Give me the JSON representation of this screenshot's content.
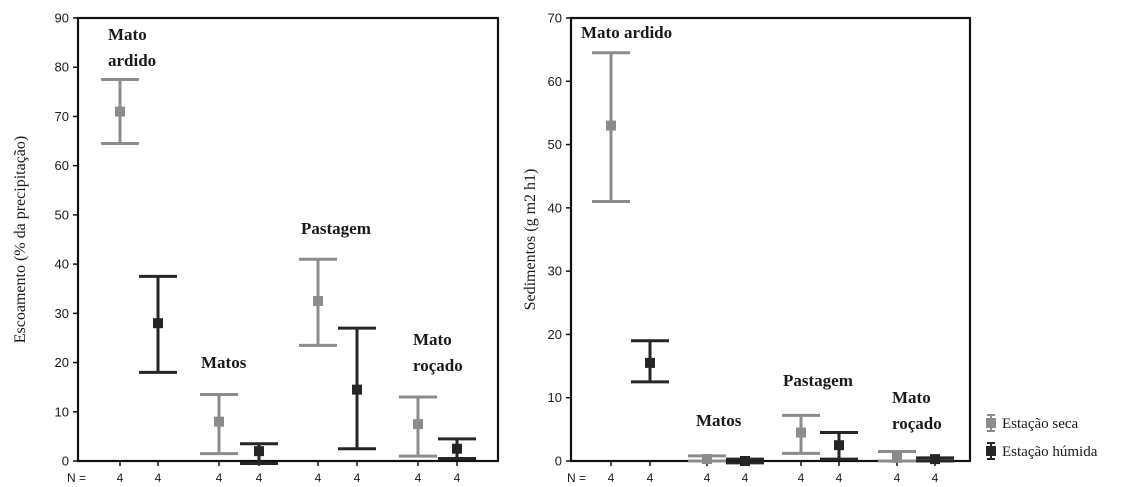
{
  "legend": [
    {
      "label": "Estação seca",
      "color": "#8c8c8c"
    },
    {
      "label": "Estação húmida",
      "color": "#262626"
    }
  ],
  "n_prefix": "N =",
  "chart_data": [
    {
      "type": "error_bar",
      "ylabel": "Escoamento (% da precipitação)",
      "ylim": [
        0,
        90
      ],
      "yticks": [
        0,
        10,
        20,
        30,
        40,
        50,
        60,
        70,
        80,
        90
      ],
      "n_values": [
        "4",
        "4",
        "4",
        "4",
        "4",
        "4",
        "4",
        "4"
      ],
      "annotations": [
        {
          "lines": [
            "Mato",
            "ardido"
          ],
          "group": 0
        },
        {
          "lines": [
            "Matos"
          ],
          "group": 1
        },
        {
          "lines": [
            "Pastagem"
          ],
          "group": 2
        },
        {
          "lines": [
            "Mato",
            "roçado"
          ],
          "group": 3
        }
      ],
      "groups": [
        "Mato ardido",
        "Matos",
        "Pastagem",
        "Mato roçado"
      ],
      "series": [
        {
          "name": "Estação seca",
          "color": "#8c8c8c",
          "mean": [
            71,
            8,
            32.5,
            7.5
          ],
          "lower": [
            64.5,
            1.5,
            23.5,
            1
          ],
          "upper": [
            77.5,
            13.5,
            41,
            13
          ]
        },
        {
          "name": "Estação húmida",
          "color": "#262626",
          "mean": [
            28,
            2,
            14.5,
            2.5
          ],
          "lower": [
            18,
            -0.5,
            2.5,
            0.5
          ],
          "upper": [
            37.5,
            3.5,
            27,
            4.5
          ]
        }
      ]
    },
    {
      "type": "error_bar",
      "ylabel": "Sedimentos (g m2 h1)",
      "ylim": [
        0,
        70
      ],
      "yticks": [
        0,
        10,
        20,
        30,
        40,
        50,
        60,
        70
      ],
      "n_values": [
        "4",
        "4",
        "4",
        "4",
        "4",
        "4",
        "4",
        "4"
      ],
      "annotations": [
        {
          "lines": [
            "Mato ardido"
          ],
          "group": 0
        },
        {
          "lines": [
            "Matos"
          ],
          "group": 1
        },
        {
          "lines": [
            "Pastagem"
          ],
          "group": 2
        },
        {
          "lines": [
            "Mato",
            "roçado"
          ],
          "group": 3
        }
      ],
      "groups": [
        "Mato ardido",
        "Matos",
        "Pastagem",
        "Mato roçado"
      ],
      "series": [
        {
          "name": "Estação seca",
          "color": "#8c8c8c",
          "mean": [
            53,
            0.3,
            4.5,
            0.5
          ],
          "lower": [
            41,
            0,
            1.2,
            0
          ],
          "upper": [
            64.5,
            0.8,
            7.2,
            1.5
          ]
        },
        {
          "name": "Estação húmida",
          "color": "#262626",
          "mean": [
            15.5,
            0,
            2.5,
            0.3
          ],
          "lower": [
            12.5,
            -0.3,
            0.3,
            0
          ],
          "upper": [
            19,
            0.3,
            4.5,
            0.5
          ]
        }
      ]
    }
  ]
}
